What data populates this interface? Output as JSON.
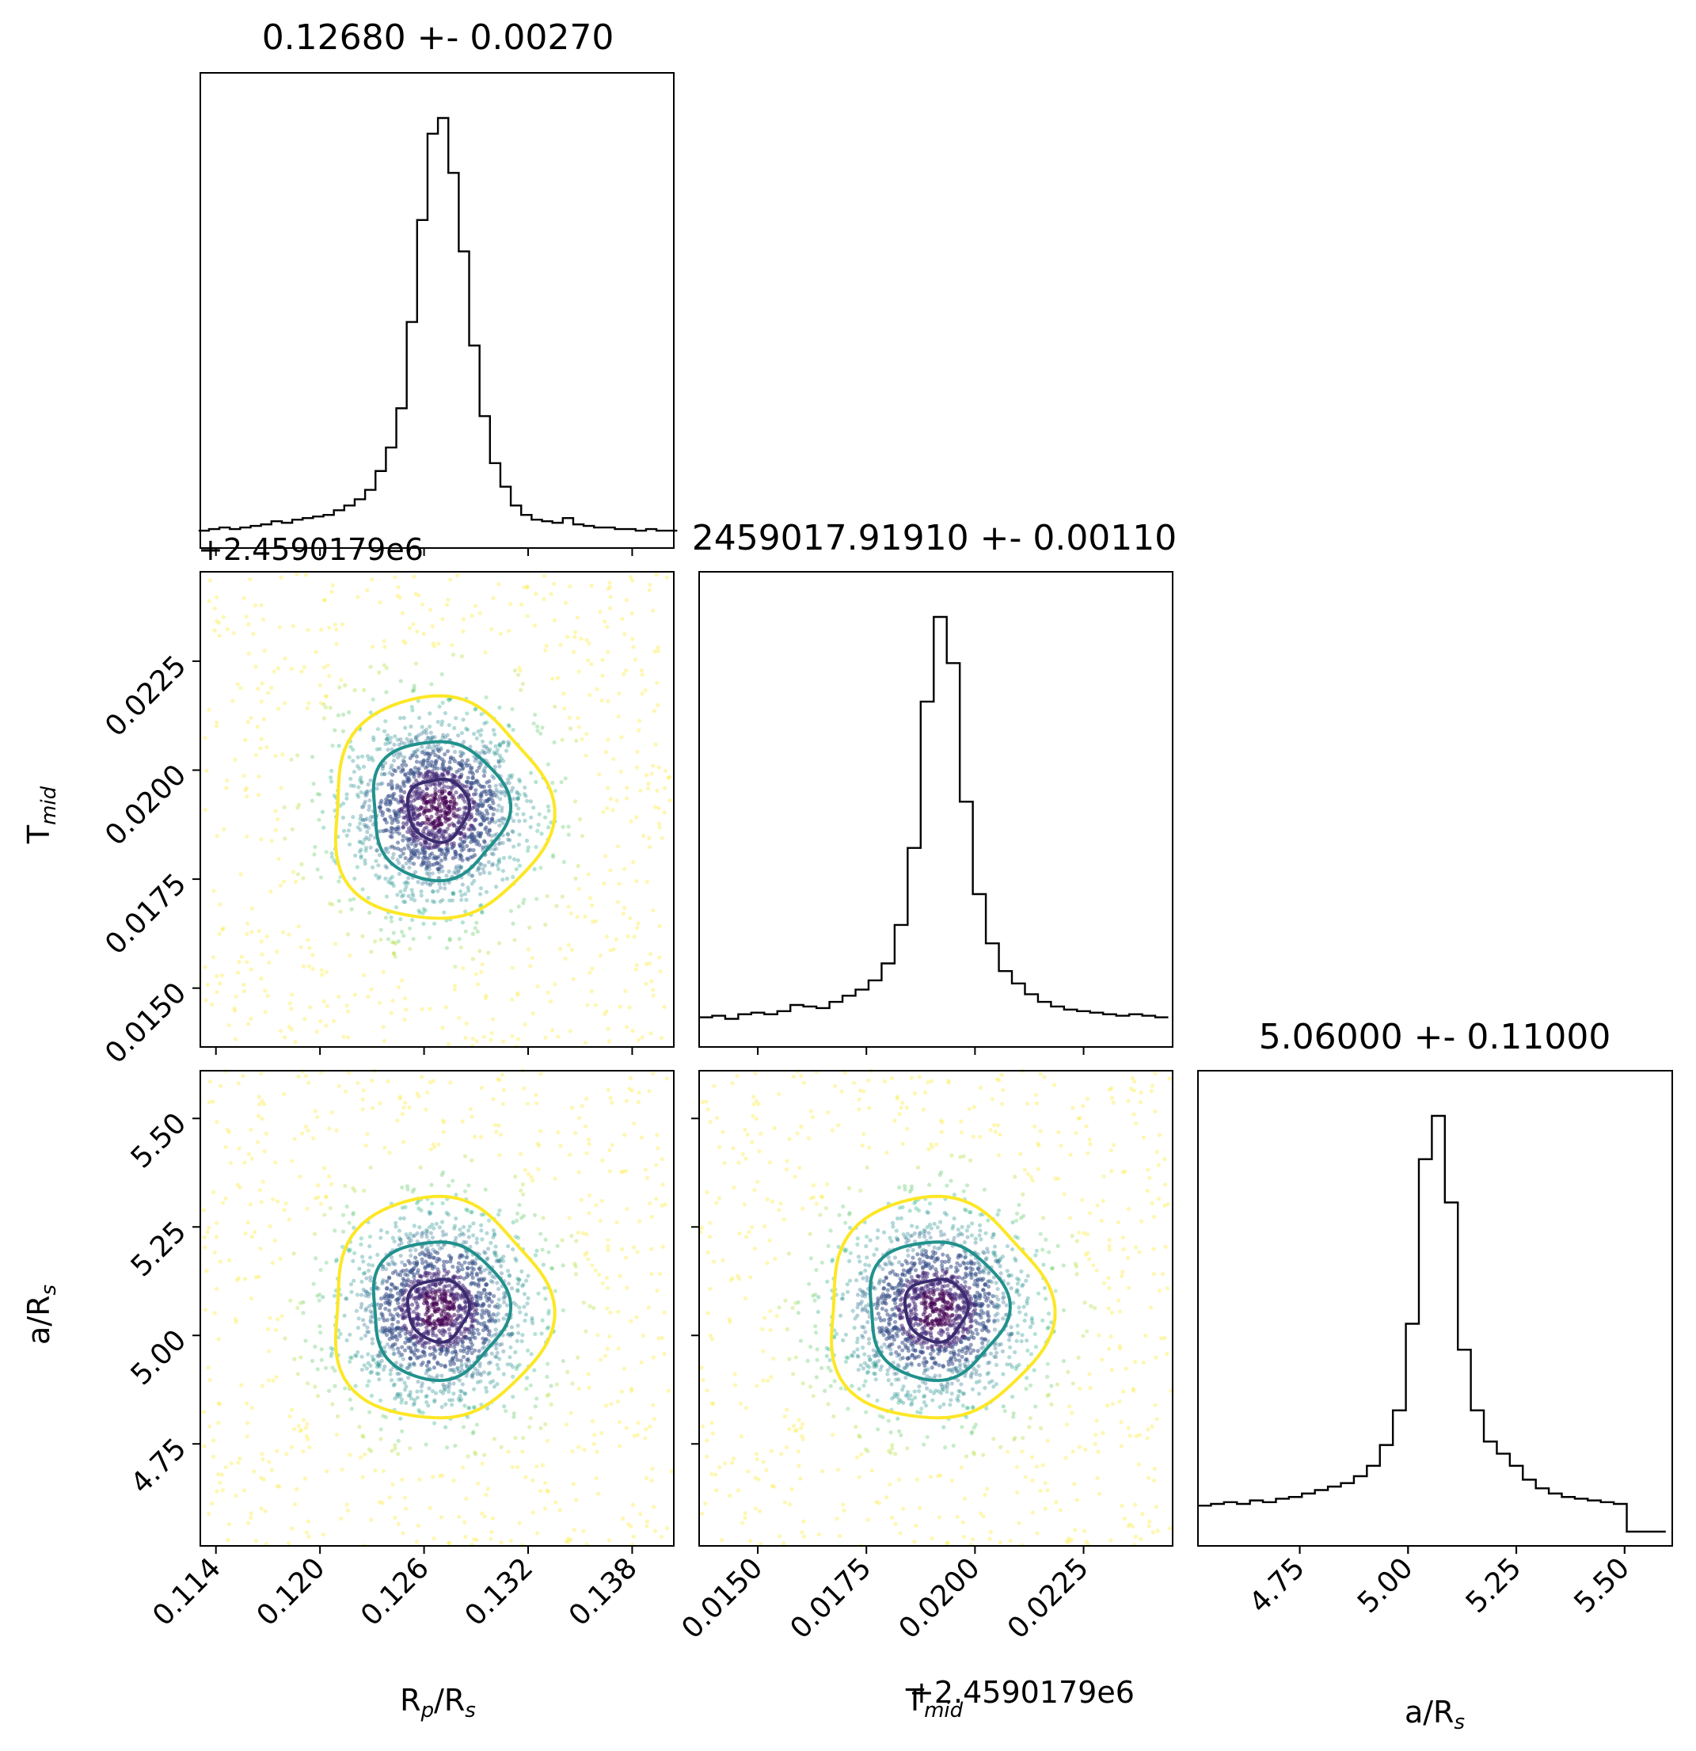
{
  "figure": {
    "type": "corner-plot",
    "parameters": [
      "R_p/R_s",
      "T_mid",
      "a/R_s"
    ]
  },
  "chart_data": [
    {
      "type": "histogram",
      "panel": "diag-0",
      "title": "0.12680 +- 0.00270",
      "xlim": [
        0.1131,
        0.1404
      ],
      "xticks": [
        0.114,
        0.12,
        0.126,
        0.132,
        0.138
      ],
      "bin_centers": [
        0.1133,
        0.1139,
        0.1145,
        0.1151,
        0.1157,
        0.1163,
        0.1169,
        0.1175,
        0.1181,
        0.1187,
        0.1193,
        0.1199,
        0.1205,
        0.1211,
        0.1217,
        0.1223,
        0.1229,
        0.1235,
        0.1241,
        0.1247,
        0.1253,
        0.1259,
        0.1265,
        0.1271,
        0.1277,
        0.1283,
        0.1289,
        0.1295,
        0.1301,
        0.1307,
        0.1313,
        0.1319,
        0.1325,
        0.1331,
        0.1337,
        0.1343,
        0.1349,
        0.1355,
        0.1361,
        0.1367,
        0.1373,
        0.1379,
        0.1385,
        0.1391,
        0.1397,
        0.1403
      ],
      "counts": [
        2,
        3,
        4,
        3,
        4,
        5,
        6,
        8,
        7,
        9,
        10,
        11,
        12,
        15,
        18,
        22,
        28,
        40,
        55,
        80,
        135,
        200,
        255,
        265,
        230,
        180,
        120,
        75,
        45,
        30,
        18,
        12,
        9,
        8,
        7,
        10,
        6,
        5,
        4,
        4,
        3,
        3,
        2,
        3,
        2,
        2
      ]
    },
    {
      "type": "histogram",
      "panel": "diag-1",
      "title": "2459017.91910 +- 0.00110",
      "xlim": [
        0.01365,
        0.02455
      ],
      "xticks": [
        0.015,
        0.0175,
        0.02,
        0.0225
      ],
      "xtick_labels": [
        "0.0150",
        "0.0175",
        "0.0200",
        "0.0225"
      ],
      "offset_label": "+2.4590179e6",
      "bin_centers": [
        0.0138,
        0.0141,
        0.0144,
        0.0147,
        0.015,
        0.0153,
        0.0156,
        0.0159,
        0.0162,
        0.0165,
        0.0168,
        0.0171,
        0.0174,
        0.0177,
        0.018,
        0.0183,
        0.0186,
        0.0189,
        0.0192,
        0.0195,
        0.0198,
        0.0201,
        0.0204,
        0.0207,
        0.021,
        0.0213,
        0.0216,
        0.0219,
        0.0222,
        0.0225,
        0.0228,
        0.0231,
        0.0234,
        0.0237,
        0.024,
        0.0243
      ],
      "counts": [
        10,
        11,
        9,
        12,
        13,
        12,
        14,
        18,
        17,
        16,
        20,
        24,
        28,
        34,
        45,
        70,
        120,
        215,
        270,
        240,
        150,
        90,
        58,
        40,
        32,
        25,
        20,
        17,
        15,
        14,
        13,
        12,
        11,
        12,
        11,
        10
      ]
    },
    {
      "type": "histogram",
      "panel": "diag-2",
      "title": "5.06000 +- 0.11000",
      "xlim": [
        4.515,
        5.61
      ],
      "xticks": [
        4.75,
        5.0,
        5.25,
        5.5
      ],
      "xtick_labels": [
        "4.75",
        "5.00",
        "5.25",
        "5.50"
      ],
      "bin_centers": [
        4.53,
        4.56,
        4.59,
        4.62,
        4.65,
        4.68,
        4.71,
        4.74,
        4.77,
        4.8,
        4.83,
        4.86,
        4.89,
        4.92,
        4.95,
        4.98,
        5.01,
        5.04,
        5.07,
        5.1,
        5.13,
        5.16,
        5.19,
        5.22,
        5.25,
        5.28,
        5.31,
        5.34,
        5.37,
        5.4,
        5.43,
        5.46,
        5.49,
        5.52,
        5.55,
        5.58
      ],
      "counts": [
        15,
        16,
        17,
        16,
        18,
        17,
        19,
        20,
        22,
        24,
        26,
        28,
        32,
        38,
        50,
        70,
        120,
        215,
        240,
        190,
        105,
        70,
        52,
        45,
        38,
        30,
        25,
        22,
        20,
        19,
        18,
        17,
        16,
        0,
        0,
        0
      ]
    },
    {
      "type": "scatter-contour",
      "panel": "R_p/R_s-vs-T_mid",
      "xlim": [
        0.1131,
        0.1404
      ],
      "ylim": [
        0.01365,
        0.02455
      ],
      "yticks": [
        0.015,
        0.0175,
        0.02,
        0.0225
      ],
      "ytick_labels": [
        "0.0150",
        "0.0175",
        "0.0200",
        "0.0225"
      ],
      "center": [
        0.1268,
        0.0191
      ],
      "sigma": [
        0.0027,
        0.0011
      ],
      "contour_levels": [
        {
          "name": "inner",
          "color": "#3b2c70",
          "scale": 0.45
        },
        {
          "name": "middle",
          "color": "#21918c",
          "scale": 1.0
        },
        {
          "name": "outer",
          "color": "#fde725",
          "scale": 1.6
        }
      ]
    },
    {
      "type": "scatter-contour",
      "panel": "R_p/R_s-vs-a/R_s",
      "xlim": [
        0.1131,
        0.1404
      ],
      "ylim": [
        4.515,
        5.61
      ],
      "yticks": [
        4.75,
        5.0,
        5.25,
        5.5
      ],
      "ytick_labels": [
        "4.75",
        "5.00",
        "5.25",
        "5.50"
      ],
      "center": [
        0.1268,
        5.06
      ],
      "sigma": [
        0.0027,
        0.11
      ],
      "contour_levels": [
        {
          "name": "inner",
          "color": "#3b2c70",
          "scale": 0.45
        },
        {
          "name": "middle",
          "color": "#21918c",
          "scale": 1.0
        },
        {
          "name": "outer",
          "color": "#fde725",
          "scale": 1.6
        }
      ]
    },
    {
      "type": "scatter-contour",
      "panel": "T_mid-vs-a/R_s",
      "xlim": [
        0.01365,
        0.02455
      ],
      "ylim": [
        4.515,
        5.61
      ],
      "center": [
        0.0191,
        5.06
      ],
      "sigma": [
        0.0011,
        0.11
      ],
      "contour_levels": [
        {
          "name": "inner",
          "color": "#3b2c70",
          "scale": 0.45
        },
        {
          "name": "middle",
          "color": "#21918c",
          "scale": 1.0
        },
        {
          "name": "outer",
          "color": "#fde725",
          "scale": 1.6
        }
      ]
    }
  ],
  "labels": {
    "x_rp": "R",
    "x_rp_sub": "p",
    "x_rp_rest": "/R",
    "x_rp_sub2": "s",
    "x_tmid": "T",
    "x_tmid_sub": "mid",
    "x_tmid_offset": "+2.4590179e6",
    "x_ars": "a/R",
    "x_ars_sub": "s",
    "y_tmid": "T",
    "y_tmid_sub": "mid",
    "y_ars": "a/R",
    "y_ars_sub": "s",
    "y_tmid_offset": "+2.4590179e6"
  },
  "x_tick_labels_col0": [
    "0.114",
    "0.120",
    "0.126",
    "0.132",
    "0.138"
  ],
  "colors": {
    "axes": "#000000",
    "hist": "#000000",
    "viridis_dark": "#440154",
    "viridis_mid": "#21918c",
    "viridis_light": "#fde725"
  }
}
